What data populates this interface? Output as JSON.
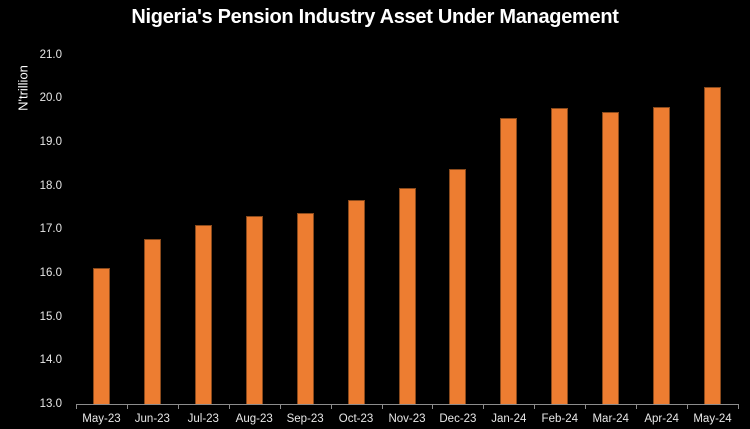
{
  "chart_data": {
    "type": "bar",
    "title": "Nigeria's Pension Industry Asset Under Management",
    "xlabel": "",
    "ylabel": "N'trillion",
    "ylim": [
      13.0,
      21.0
    ],
    "yticks": [
      "13.0",
      "14.0",
      "15.0",
      "16.0",
      "17.0",
      "18.0",
      "19.0",
      "20.0",
      "21.0"
    ],
    "grid": false,
    "legend": null,
    "bar_color": "#ED7D31",
    "background": "#000000",
    "categories": [
      "May-23",
      "Jun-23",
      "Jul-23",
      "Aug-23",
      "Sep-23",
      "Oct-23",
      "Nov-23",
      "Dec-23",
      "Jan-24",
      "Feb-24",
      "Mar-24",
      "Apr-24",
      "May-24"
    ],
    "values": [
      16.11,
      16.77,
      17.09,
      17.3,
      17.37,
      17.67,
      17.95,
      18.37,
      19.55,
      19.77,
      19.69,
      19.8,
      20.25
    ]
  }
}
